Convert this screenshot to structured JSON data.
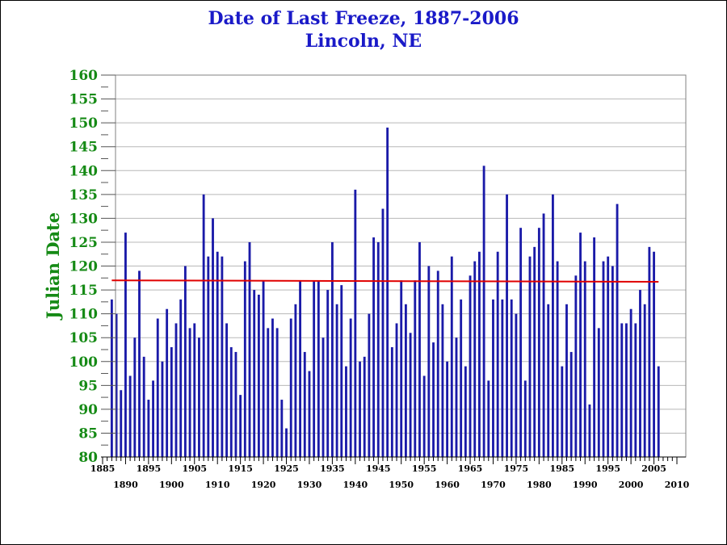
{
  "chart_data": {
    "type": "bar",
    "title": "Date of Last Freeze, 1887-2006",
    "subtitle": "Lincoln, NE",
    "xlabel": "",
    "ylabel": "Julian Date",
    "ylim": [
      80,
      160
    ],
    "xlim": [
      1885,
      2010
    ],
    "yticks": [
      "80",
      "85",
      "90",
      "95",
      "100",
      "105",
      "110",
      "115",
      "120",
      "125",
      "130",
      "135",
      "140",
      "145",
      "150",
      "155",
      "160"
    ],
    "xticks_upper": [
      "1885",
      "1895",
      "1905",
      "1915",
      "1925",
      "1935",
      "1945",
      "1955",
      "1965",
      "1975",
      "1985",
      "1995",
      "2005"
    ],
    "xticks_lower": [
      "1890",
      "1900",
      "1910",
      "1920",
      "1930",
      "1940",
      "1950",
      "1960",
      "1970",
      "1980",
      "1990",
      "2000",
      "2010"
    ],
    "grid": true,
    "bar_color": "#1a1aa8",
    "mean_line_color": "#e00000",
    "mean_line": {
      "start": [
        1887,
        117
      ],
      "end": [
        2006,
        116.7
      ]
    },
    "x": [
      1887,
      1888,
      1889,
      1890,
      1891,
      1892,
      1893,
      1894,
      1895,
      1896,
      1897,
      1898,
      1899,
      1900,
      1901,
      1902,
      1903,
      1904,
      1905,
      1906,
      1907,
      1908,
      1909,
      1910,
      1911,
      1912,
      1913,
      1914,
      1915,
      1916,
      1917,
      1918,
      1919,
      1920,
      1921,
      1922,
      1923,
      1924,
      1925,
      1926,
      1927,
      1928,
      1929,
      1930,
      1931,
      1932,
      1933,
      1934,
      1935,
      1936,
      1937,
      1938,
      1939,
      1940,
      1941,
      1942,
      1943,
      1944,
      1945,
      1946,
      1947,
      1948,
      1949,
      1950,
      1951,
      1952,
      1953,
      1954,
      1955,
      1956,
      1957,
      1958,
      1959,
      1960,
      1961,
      1962,
      1963,
      1964,
      1965,
      1966,
      1967,
      1968,
      1969,
      1970,
      1971,
      1972,
      1973,
      1974,
      1975,
      1976,
      1977,
      1978,
      1979,
      1980,
      1981,
      1982,
      1983,
      1984,
      1985,
      1986,
      1987,
      1988,
      1989,
      1990,
      1991,
      1992,
      1993,
      1994,
      1995,
      1996,
      1997,
      1998,
      1999,
      2000,
      2001,
      2002,
      2003,
      2004,
      2005,
      2006
    ],
    "values": [
      113,
      110,
      94,
      127,
      97,
      105,
      119,
      101,
      92,
      96,
      109,
      100,
      111,
      103,
      108,
      113,
      120,
      107,
      108,
      105,
      135,
      122,
      130,
      123,
      122,
      108,
      103,
      102,
      93,
      121,
      125,
      115,
      114,
      117,
      107,
      109,
      107,
      92,
      86,
      109,
      112,
      117,
      102,
      98,
      117,
      117,
      105,
      115,
      125,
      112,
      116,
      99,
      109,
      136,
      100,
      101,
      110,
      126,
      125,
      132,
      149,
      103,
      108,
      117,
      112,
      106,
      117,
      125,
      97,
      120,
      104,
      119,
      112,
      100,
      122,
      105,
      113,
      99,
      118,
      121,
      123,
      141,
      96,
      113,
      123,
      113,
      135,
      113,
      110,
      128,
      96,
      122,
      124,
      128,
      131,
      112,
      135,
      121,
      99,
      112,
      102,
      118,
      127,
      121,
      91,
      126,
      107,
      121,
      122,
      120,
      133,
      108,
      108,
      111,
      108,
      115,
      112,
      124,
      123,
      99
    ]
  }
}
